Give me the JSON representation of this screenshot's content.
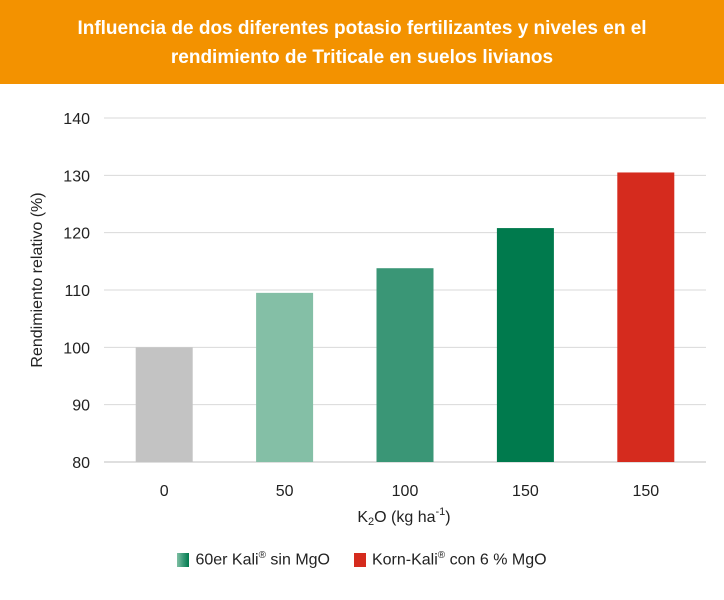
{
  "title": {
    "line1": "Influencia de dos diferentes potasio fertilizantes y niveles en el",
    "line2": "rendimiento de Triticale en suelos livianos"
  },
  "colors": {
    "header": "#f39200",
    "grid": "#d9d9d9"
  },
  "chart_data": {
    "type": "bar",
    "title": "Influencia de dos diferentes potasio fertilizantes y niveles en el rendimiento de Triticale en suelos livianos",
    "categories": [
      "0",
      "50",
      "100",
      "150",
      "150"
    ],
    "values": [
      100,
      109.5,
      113.8,
      120.8,
      130.5
    ],
    "bar_colors": [
      "#c3c3c3",
      "#84bfa6",
      "#3a9676",
      "#007a4d",
      "#d52b1e"
    ],
    "ylabel": "Rendimiento relativo (%)",
    "xlabel": "K2O (kg ha-1)",
    "ylim": [
      80,
      140
    ],
    "yticks": [
      80,
      90,
      100,
      110,
      120,
      130,
      140
    ],
    "grid": true,
    "legend": [
      {
        "label": "60er Kali",
        "sup": "®",
        "suffix": " sin MgO",
        "color": "#3a9a78"
      },
      {
        "label": "Korn-Kali",
        "sup": "®",
        "suffix": " con 6 % MgO",
        "color": "#d52b1e"
      }
    ]
  }
}
